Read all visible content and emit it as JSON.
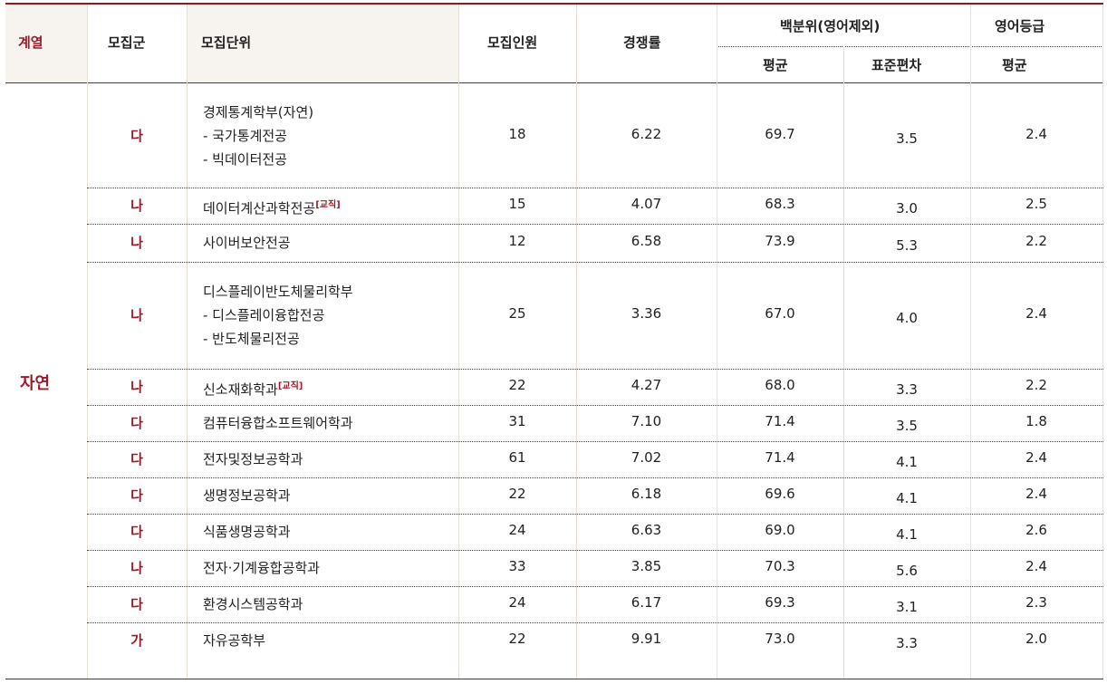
{
  "header": {
    "field": "계열",
    "group": "모집군",
    "unit": "모집단위",
    "quota": "모집인원",
    "ratio": "경쟁률",
    "percentile": "백분위(영어제외)",
    "percentile_avg": "평균",
    "percentile_sd": "표준편차",
    "english": "영어등급",
    "english_avg": "평균"
  },
  "field_label": "자연",
  "rows": [
    {
      "group": "다",
      "unit": [
        "경제통계학부(자연)",
        "- 국가통계전공",
        "- 빅데이터전공"
      ],
      "tag": "",
      "quota": "18",
      "ratio": "6.22",
      "avg": "69.7",
      "sd": "3.5",
      "eng": "2.4"
    },
    {
      "group": "나",
      "unit": [
        "데이터계산과학전공"
      ],
      "tag": "[교직]",
      "quota": "15",
      "ratio": "4.07",
      "avg": "68.3",
      "sd": "3.0",
      "eng": "2.5"
    },
    {
      "group": "나",
      "unit": [
        "사이버보안전공"
      ],
      "tag": "",
      "quota": "12",
      "ratio": "6.58",
      "avg": "73.9",
      "sd": "5.3",
      "eng": "2.2"
    },
    {
      "group": "나",
      "unit": [
        "디스플레이반도체물리학부",
        "- 디스플레이융합전공",
        "- 반도체물리전공"
      ],
      "tag": "",
      "quota": "25",
      "ratio": "3.36",
      "avg": "67.0",
      "sd": "4.0",
      "eng": "2.4"
    },
    {
      "group": "나",
      "unit": [
        "신소재화학과"
      ],
      "tag": "[교직]",
      "quota": "22",
      "ratio": "4.27",
      "avg": "68.0",
      "sd": "3.3",
      "eng": "2.2"
    },
    {
      "group": "다",
      "unit": [
        "컴퓨터융합소프트웨어학과"
      ],
      "tag": "",
      "quota": "31",
      "ratio": "7.10",
      "avg": "71.4",
      "sd": "3.5",
      "eng": "1.8"
    },
    {
      "group": "다",
      "unit": [
        "전자및정보공학과"
      ],
      "tag": "",
      "quota": "61",
      "ratio": "7.02",
      "avg": "71.4",
      "sd": "4.1",
      "eng": "2.4"
    },
    {
      "group": "다",
      "unit": [
        "생명정보공학과"
      ],
      "tag": "",
      "quota": "22",
      "ratio": "6.18",
      "avg": "69.6",
      "sd": "4.1",
      "eng": "2.4"
    },
    {
      "group": "다",
      "unit": [
        "식품생명공학과"
      ],
      "tag": "",
      "quota": "24",
      "ratio": "6.63",
      "avg": "69.0",
      "sd": "4.1",
      "eng": "2.6"
    },
    {
      "group": "나",
      "unit": [
        "전자·기계융합공학과"
      ],
      "tag": "",
      "quota": "33",
      "ratio": "3.85",
      "avg": "70.3",
      "sd": "5.6",
      "eng": "2.4"
    },
    {
      "group": "다",
      "unit": [
        "환경시스템공학과"
      ],
      "tag": "",
      "quota": "24",
      "ratio": "6.17",
      "avg": "69.3",
      "sd": "3.1",
      "eng": "2.3"
    },
    {
      "group": "가",
      "unit": [
        "자유공학부"
      ],
      "tag": "",
      "quota": "22",
      "ratio": "9.91",
      "avg": "73.0",
      "sd": "3.3",
      "eng": "2.0"
    }
  ]
}
